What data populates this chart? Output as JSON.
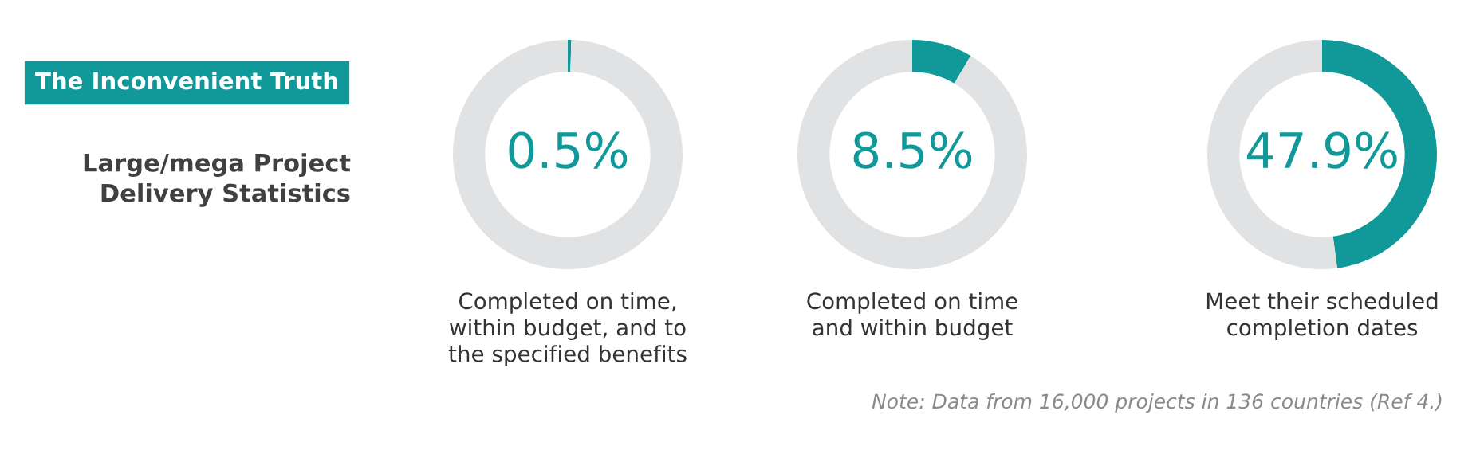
{
  "chart_data": [
    {
      "type": "other",
      "title": "The Inconvenient Truth",
      "subtitle": "Large/mega Project\nDelivery Statistics",
      "color": "#11999a",
      "annotations": [
        "Note: Data from 16,000 projects in 136 countries (Ref 4.)"
      ]
    },
    {
      "type": "donut",
      "categories": [
        null,
        null
      ],
      "values": [
        0.5,
        99.5
      ],
      "colors": [
        "#11999a",
        "#e1e2e4"
      ],
      "value_labels": [
        "0.5%",
        null
      ],
      "xlabel": "Completed on time,\nwithin budget, and to\nthe specified benefits"
    },
    {
      "type": "donut",
      "categories": [
        null,
        null
      ],
      "values": [
        8.5,
        91.5
      ],
      "colors": [
        "#11999a",
        "#e1e2e4"
      ],
      "value_labels": [
        "8.5%",
        null
      ],
      "xlabel": "Completed on time\nand within budget"
    },
    {
      "type": "donut",
      "categories": [
        null,
        null
      ],
      "values": [
        47.9,
        52.1
      ],
      "colors": [
        "#11999a",
        "#e1e2e4"
      ],
      "value_labels": [
        "47.9%",
        null
      ],
      "xlabel": "Meet their scheduled\ncompletion dates"
    }
  ]
}
